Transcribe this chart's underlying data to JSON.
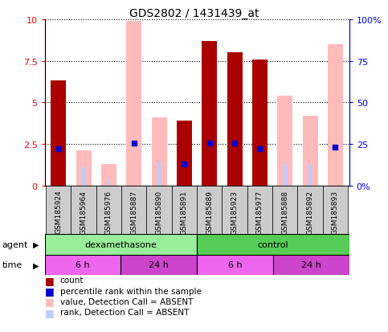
{
  "title": "GDS2802 / 1431439_at",
  "samples": [
    "GSM185924",
    "GSM185964",
    "GSM185976",
    "GSM185887",
    "GSM185890",
    "GSM185891",
    "GSM185889",
    "GSM185923",
    "GSM185977",
    "GSM185888",
    "GSM185892",
    "GSM185893"
  ],
  "count_values": [
    6.3,
    0,
    0,
    0,
    0,
    3.9,
    8.7,
    8.0,
    7.6,
    0,
    0,
    0
  ],
  "rank_values": [
    2.2,
    0,
    0,
    2.55,
    0,
    1.3,
    2.55,
    2.55,
    2.2,
    0,
    0,
    2.3
  ],
  "absent_value": [
    0,
    2.1,
    1.3,
    9.9,
    4.1,
    0,
    0,
    0,
    0,
    5.4,
    4.2,
    8.5
  ],
  "absent_rank": [
    0,
    1.1,
    0.4,
    0,
    1.4,
    0,
    0,
    0,
    0,
    1.3,
    1.3,
    0
  ],
  "ylim": [
    0,
    10
  ],
  "yticks": [
    0,
    2.5,
    5.0,
    7.5,
    10
  ],
  "ytick_labels": [
    "0",
    "2.5",
    "5",
    "7.5",
    "10"
  ],
  "y2tick_labels": [
    "0%",
    "25",
    "50",
    "75",
    "100%"
  ],
  "color_count": "#aa0000",
  "color_rank": "#0000cc",
  "color_absent_value": "#ffbbbb",
  "color_absent_rank": "#bbccff",
  "agent_label": "agent",
  "time_label": "time",
  "agent_dex": "dexamethasone",
  "agent_ctrl": "control",
  "time_6h_1": "6 h",
  "time_24h_1": "24 h",
  "time_6h_2": "6 h",
  "time_24h_2": "24 h",
  "dex_color": "#99ee99",
  "ctrl_color": "#55cc55",
  "time_color_light": "#ee66ee",
  "time_color_dark": "#cc44cc",
  "bg_color": "#cccccc",
  "legend_count": "count",
  "legend_rank": "percentile rank within the sample",
  "legend_absent_val": "value, Detection Call = ABSENT",
  "legend_absent_rank": "rank, Detection Call = ABSENT",
  "n_samples": 12,
  "dex_samples": 6,
  "ctrl_samples": 6,
  "time_6h_1_count": 3,
  "time_24h_1_count": 3,
  "time_6h_2_count": 3,
  "time_24h_2_count": 3
}
